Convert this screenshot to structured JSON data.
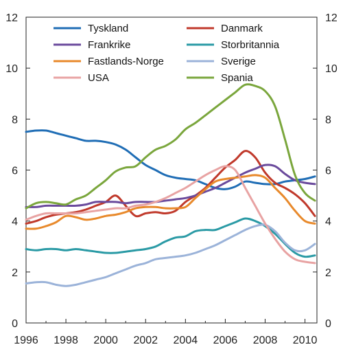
{
  "chart_data": {
    "type": "line",
    "xlim": [
      1996,
      2010.6
    ],
    "ylim": [
      0,
      12
    ],
    "x_ticks": [
      1996,
      1998,
      2000,
      2002,
      2004,
      2006,
      2008,
      2010
    ],
    "y_ticks": [
      0,
      2,
      4,
      6,
      8,
      10,
      12
    ],
    "y_axis_both_sides": true,
    "grid": false,
    "legend": "top, two columns inside plot",
    "series": [
      {
        "name": "Tyskland",
        "color": "#1f6db5",
        "x": [
          1996,
          1996.5,
          1997,
          1997.5,
          1998,
          1998.5,
          1999,
          1999.5,
          2000,
          2000.5,
          2001,
          2001.5,
          2002,
          2002.5,
          2003,
          2003.5,
          2004,
          2004.5,
          2005,
          2005.5,
          2006,
          2006.5,
          2007,
          2007.5,
          2008,
          2008.5,
          2009,
          2009.5,
          2010,
          2010.5
        ],
        "y": [
          7.5,
          7.55,
          7.55,
          7.45,
          7.35,
          7.25,
          7.15,
          7.15,
          7.1,
          7.0,
          6.8,
          6.5,
          6.2,
          6.0,
          5.8,
          5.7,
          5.65,
          5.6,
          5.45,
          5.3,
          5.25,
          5.35,
          5.55,
          5.5,
          5.45,
          5.45,
          5.55,
          5.6,
          5.65,
          5.75
        ]
      },
      {
        "name": "Danmark",
        "color": "#c0392b",
        "x": [
          1996,
          1996.5,
          1997,
          1997.5,
          1998,
          1998.5,
          1999,
          1999.5,
          2000,
          2000.5,
          2001,
          2001.5,
          2002,
          2002.5,
          2003,
          2003.5,
          2004,
          2004.5,
          2005,
          2005.5,
          2006,
          2006.5,
          2007,
          2007.5,
          2008,
          2008.5,
          2009,
          2009.5,
          2010,
          2010.5
        ],
        "y": [
          3.9,
          4.0,
          4.15,
          4.25,
          4.3,
          4.35,
          4.45,
          4.6,
          4.75,
          5.0,
          4.6,
          4.2,
          4.3,
          4.35,
          4.3,
          4.4,
          4.75,
          5.0,
          5.3,
          5.7,
          6.1,
          6.4,
          6.75,
          6.5,
          5.9,
          5.5,
          5.3,
          5.05,
          4.7,
          4.2
        ]
      },
      {
        "name": "Frankrike",
        "color": "#6a4a9c",
        "x": [
          1996,
          1996.5,
          1997,
          1997.5,
          1998,
          1998.5,
          1999,
          1999.5,
          2000,
          2000.5,
          2001,
          2001.5,
          2002,
          2002.5,
          2003,
          2003.5,
          2004,
          2004.5,
          2005,
          2005.5,
          2006,
          2006.5,
          2007,
          2007.5,
          2008,
          2008.5,
          2009,
          2009.5,
          2010,
          2010.5
        ],
        "y": [
          4.55,
          4.55,
          4.6,
          4.6,
          4.6,
          4.6,
          4.65,
          4.75,
          4.75,
          4.75,
          4.7,
          4.75,
          4.75,
          4.75,
          4.8,
          4.85,
          4.9,
          5.0,
          5.15,
          5.3,
          5.5,
          5.7,
          5.9,
          6.05,
          6.2,
          6.15,
          5.85,
          5.6,
          5.5,
          5.45
        ]
      },
      {
        "name": "Storbritannia",
        "color": "#2a9aa5",
        "x": [
          1996,
          1996.5,
          1997,
          1997.5,
          1998,
          1998.5,
          1999,
          1999.5,
          2000,
          2000.5,
          2001,
          2001.5,
          2002,
          2002.5,
          2003,
          2003.5,
          2004,
          2004.5,
          2005,
          2005.5,
          2006,
          2006.5,
          2007,
          2007.5,
          2008,
          2008.5,
          2009,
          2009.5,
          2010,
          2010.5
        ],
        "y": [
          2.9,
          2.85,
          2.9,
          2.9,
          2.85,
          2.9,
          2.85,
          2.8,
          2.75,
          2.75,
          2.8,
          2.85,
          2.9,
          3.0,
          3.2,
          3.35,
          3.4,
          3.6,
          3.65,
          3.65,
          3.8,
          3.95,
          4.1,
          4.0,
          3.8,
          3.5,
          3.1,
          2.75,
          2.6,
          2.65
        ]
      },
      {
        "name": "Fastlands-Norge",
        "color": "#e8892b",
        "x": [
          1996,
          1996.5,
          1997,
          1997.5,
          1998,
          1998.5,
          1999,
          1999.5,
          2000,
          2000.5,
          2001,
          2001.5,
          2002,
          2002.5,
          2003,
          2003.5,
          2004,
          2004.5,
          2005,
          2005.5,
          2006,
          2006.5,
          2007,
          2007.5,
          2008,
          2008.5,
          2009,
          2009.5,
          2010,
          2010.5
        ],
        "y": [
          3.7,
          3.7,
          3.8,
          3.95,
          4.2,
          4.15,
          4.05,
          4.1,
          4.2,
          4.25,
          4.35,
          4.5,
          4.55,
          4.55,
          4.5,
          4.5,
          4.55,
          4.9,
          5.25,
          5.55,
          5.65,
          5.7,
          5.75,
          5.8,
          5.7,
          5.3,
          4.9,
          4.4,
          4.0,
          3.9
        ]
      },
      {
        "name": "Sverige",
        "color": "#9bb3d9",
        "x": [
          1996,
          1996.5,
          1997,
          1997.5,
          1998,
          1998.5,
          1999,
          1999.5,
          2000,
          2000.5,
          2001,
          2001.5,
          2002,
          2002.5,
          2003,
          2003.5,
          2004,
          2004.5,
          2005,
          2005.5,
          2006,
          2006.5,
          2007,
          2007.5,
          2008,
          2008.5,
          2009,
          2009.5,
          2010,
          2010.5
        ],
        "y": [
          1.55,
          1.6,
          1.6,
          1.5,
          1.45,
          1.5,
          1.6,
          1.7,
          1.8,
          1.95,
          2.1,
          2.25,
          2.35,
          2.5,
          2.55,
          2.6,
          2.65,
          2.75,
          2.9,
          3.05,
          3.25,
          3.45,
          3.65,
          3.8,
          3.85,
          3.6,
          3.15,
          2.85,
          2.85,
          3.1
        ]
      },
      {
        "name": "USA",
        "color": "#e8a3a3",
        "x": [
          1996,
          1996.5,
          1997,
          1997.5,
          1998,
          1998.5,
          1999,
          1999.5,
          2000,
          2000.5,
          2001,
          2001.5,
          2002,
          2002.5,
          2003,
          2003.5,
          2004,
          2004.5,
          2005,
          2005.5,
          2006,
          2006.5,
          2007,
          2007.5,
          2008,
          2008.5,
          2009,
          2009.5,
          2010,
          2010.5
        ],
        "y": [
          4.05,
          4.2,
          4.3,
          4.3,
          4.3,
          4.3,
          4.35,
          4.4,
          4.45,
          4.5,
          4.5,
          4.6,
          4.65,
          4.75,
          4.9,
          5.1,
          5.3,
          5.55,
          5.8,
          6.0,
          6.15,
          6.0,
          5.3,
          4.6,
          3.9,
          3.3,
          2.8,
          2.5,
          2.4,
          2.35
        ]
      },
      {
        "name": "Spania",
        "color": "#7aa63c",
        "x": [
          1996,
          1996.5,
          1997,
          1997.5,
          1998,
          1998.5,
          1999,
          1999.5,
          2000,
          2000.5,
          2001,
          2001.5,
          2002,
          2002.5,
          2003,
          2003.5,
          2004,
          2004.5,
          2005,
          2005.5,
          2006,
          2006.5,
          2007,
          2007.5,
          2008,
          2008.5,
          2009,
          2009.5,
          2010,
          2010.5
        ],
        "y": [
          4.5,
          4.7,
          4.75,
          4.7,
          4.65,
          4.85,
          5.0,
          5.3,
          5.6,
          5.95,
          6.1,
          6.15,
          6.5,
          6.8,
          6.95,
          7.2,
          7.6,
          7.85,
          8.15,
          8.45,
          8.75,
          9.05,
          9.35,
          9.3,
          9.1,
          8.5,
          7.2,
          5.8,
          5.1,
          4.8
        ]
      }
    ]
  }
}
